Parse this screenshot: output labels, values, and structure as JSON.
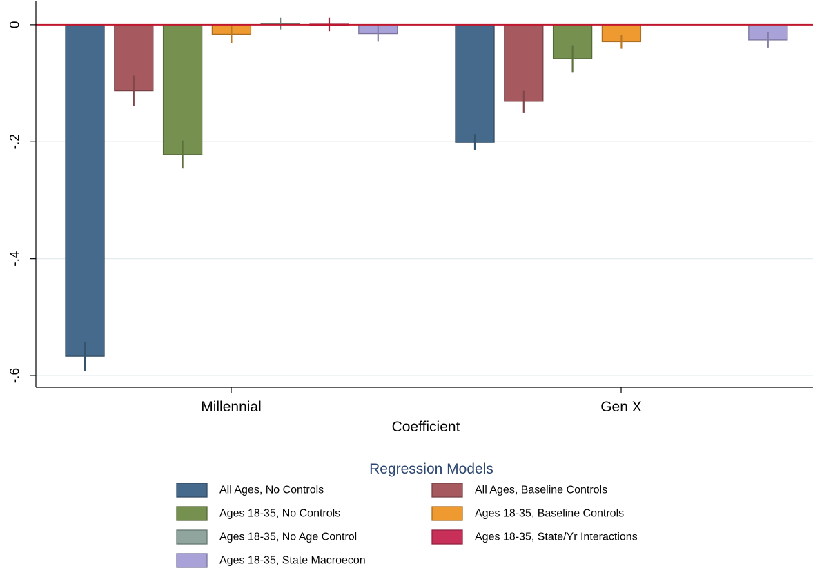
{
  "chart_data": {
    "type": "bar",
    "title": "",
    "xlabel": "Coefficient",
    "ylabel": "",
    "categories": [
      "Millennial",
      "Gen X"
    ],
    "ylim": [
      -0.62,
      0.04
    ],
    "yticks": [
      0,
      -0.2,
      -0.4,
      -0.6
    ],
    "ytick_labels": [
      "0",
      "-.2",
      "-.4",
      "-.6"
    ],
    "grid": true,
    "reference_line": {
      "value": 0,
      "color": "#c0172e"
    },
    "legend": {
      "title": "Regression Models",
      "placement": "bottom",
      "columns": 2
    },
    "series": [
      {
        "name": "All Ages, No Controls",
        "color": "#456a8b",
        "values": [
          -0.567,
          -0.201
        ],
        "ci_low": [
          -0.592,
          -0.214
        ],
        "ci_high": [
          -0.542,
          -0.187
        ]
      },
      {
        "name": "All Ages, Baseline Controls",
        "color": "#a65a60",
        "values": [
          -0.113,
          -0.131
        ],
        "ci_low": [
          -0.139,
          -0.15
        ],
        "ci_high": [
          -0.087,
          -0.113
        ]
      },
      {
        "name": "Ages 18-35, No Controls",
        "color": "#76914f",
        "values": [
          -0.222,
          -0.058
        ],
        "ci_low": [
          -0.246,
          -0.082
        ],
        "ci_high": [
          -0.198,
          -0.035
        ]
      },
      {
        "name": "Ages 18-35, Baseline Controls",
        "color": "#ee9a30",
        "values": [
          -0.016,
          -0.029
        ],
        "ci_low": [
          -0.031,
          -0.041
        ],
        "ci_high": [
          -0.001,
          -0.017
        ]
      },
      {
        "name": "Ages 18-35, No Age Control",
        "color": "#8fa59d",
        "values": [
          0.002,
          null
        ],
        "ci_low": [
          -0.008,
          null
        ],
        "ci_high": [
          0.012,
          null
        ]
      },
      {
        "name": "Ages 18-35, State/Yr Interactions",
        "color": "#c8305a",
        "values": [
          0.001,
          null
        ],
        "ci_low": [
          -0.011,
          null
        ],
        "ci_high": [
          0.012,
          null
        ]
      },
      {
        "name": "Ages 18-35, State Macroecon",
        "color": "#a9a2d8",
        "values": [
          -0.015,
          -0.026
        ],
        "ci_low": [
          -0.029,
          -0.039
        ],
        "ci_high": [
          -0.001,
          -0.013
        ]
      }
    ]
  }
}
